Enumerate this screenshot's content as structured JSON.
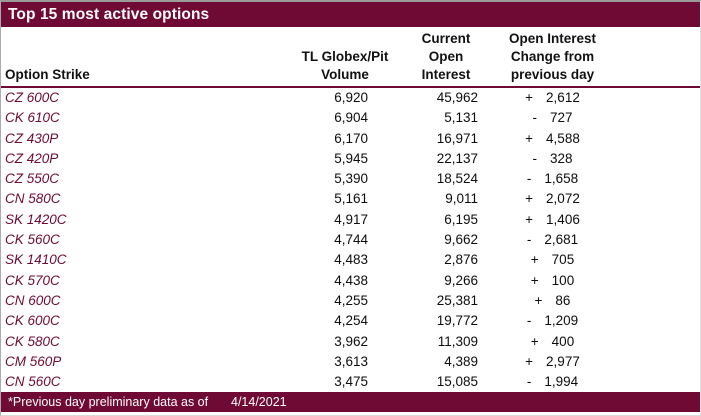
{
  "title": "Top 15 most active options",
  "columns": {
    "strike": "Option Strike",
    "volume_l1": "TL Globex/Pit",
    "volume_l2": "Volume",
    "oi_l1": "Current",
    "oi_l2": "Open",
    "oi_l3": "Interest",
    "chg_l1": "Open Interest",
    "chg_l2": "Change from",
    "chg_l3": "previous day"
  },
  "rows": [
    {
      "strike": "CZ 600C",
      "volume": "6,920",
      "open_interest": "45,962",
      "change_sign": "+",
      "change_value": "2,612"
    },
    {
      "strike": "CK 610C",
      "volume": "6,904",
      "open_interest": "5,131",
      "change_sign": "-",
      "change_value": "727"
    },
    {
      "strike": "CZ 430P",
      "volume": "6,170",
      "open_interest": "16,971",
      "change_sign": "+",
      "change_value": "4,588"
    },
    {
      "strike": "CZ 420P",
      "volume": "5,945",
      "open_interest": "22,137",
      "change_sign": "-",
      "change_value": "328"
    },
    {
      "strike": "CZ 550C",
      "volume": "5,390",
      "open_interest": "18,524",
      "change_sign": "-",
      "change_value": "1,658"
    },
    {
      "strike": "CN 580C",
      "volume": "5,161",
      "open_interest": "9,011",
      "change_sign": "+",
      "change_value": "2,072"
    },
    {
      "strike": "SK 1420C",
      "volume": "4,917",
      "open_interest": "6,195",
      "change_sign": "+",
      "change_value": "1,406"
    },
    {
      "strike": "CK 560C",
      "volume": "4,744",
      "open_interest": "9,662",
      "change_sign": "-",
      "change_value": "2,681"
    },
    {
      "strike": "SK 1410C",
      "volume": "4,483",
      "open_interest": "2,876",
      "change_sign": "+",
      "change_value": "705"
    },
    {
      "strike": "CK 570C",
      "volume": "4,438",
      "open_interest": "9,266",
      "change_sign": "+",
      "change_value": "100"
    },
    {
      "strike": "CN 600C",
      "volume": "4,255",
      "open_interest": "25,381",
      "change_sign": "+",
      "change_value": "86"
    },
    {
      "strike": "CK 600C",
      "volume": "4,254",
      "open_interest": "19,772",
      "change_sign": "-",
      "change_value": "1,209"
    },
    {
      "strike": "CK 580C",
      "volume": "3,962",
      "open_interest": "11,309",
      "change_sign": "+",
      "change_value": "400"
    },
    {
      "strike": "CM 560P",
      "volume": "3,613",
      "open_interest": "4,389",
      "change_sign": "+",
      "change_value": "2,977"
    },
    {
      "strike": "CN 560C",
      "volume": "3,475",
      "open_interest": "15,085",
      "change_sign": "-",
      "change_value": "1,994"
    }
  ],
  "footer": {
    "note": "*Previous day preliminary data as of",
    "date": "4/14/2021"
  },
  "colors": {
    "accent": "#6E0A33",
    "strike_text": "#6E0A33",
    "number_text": "#0d0d0d",
    "header_text": "#111111",
    "bar_text": "#ffffff"
  }
}
